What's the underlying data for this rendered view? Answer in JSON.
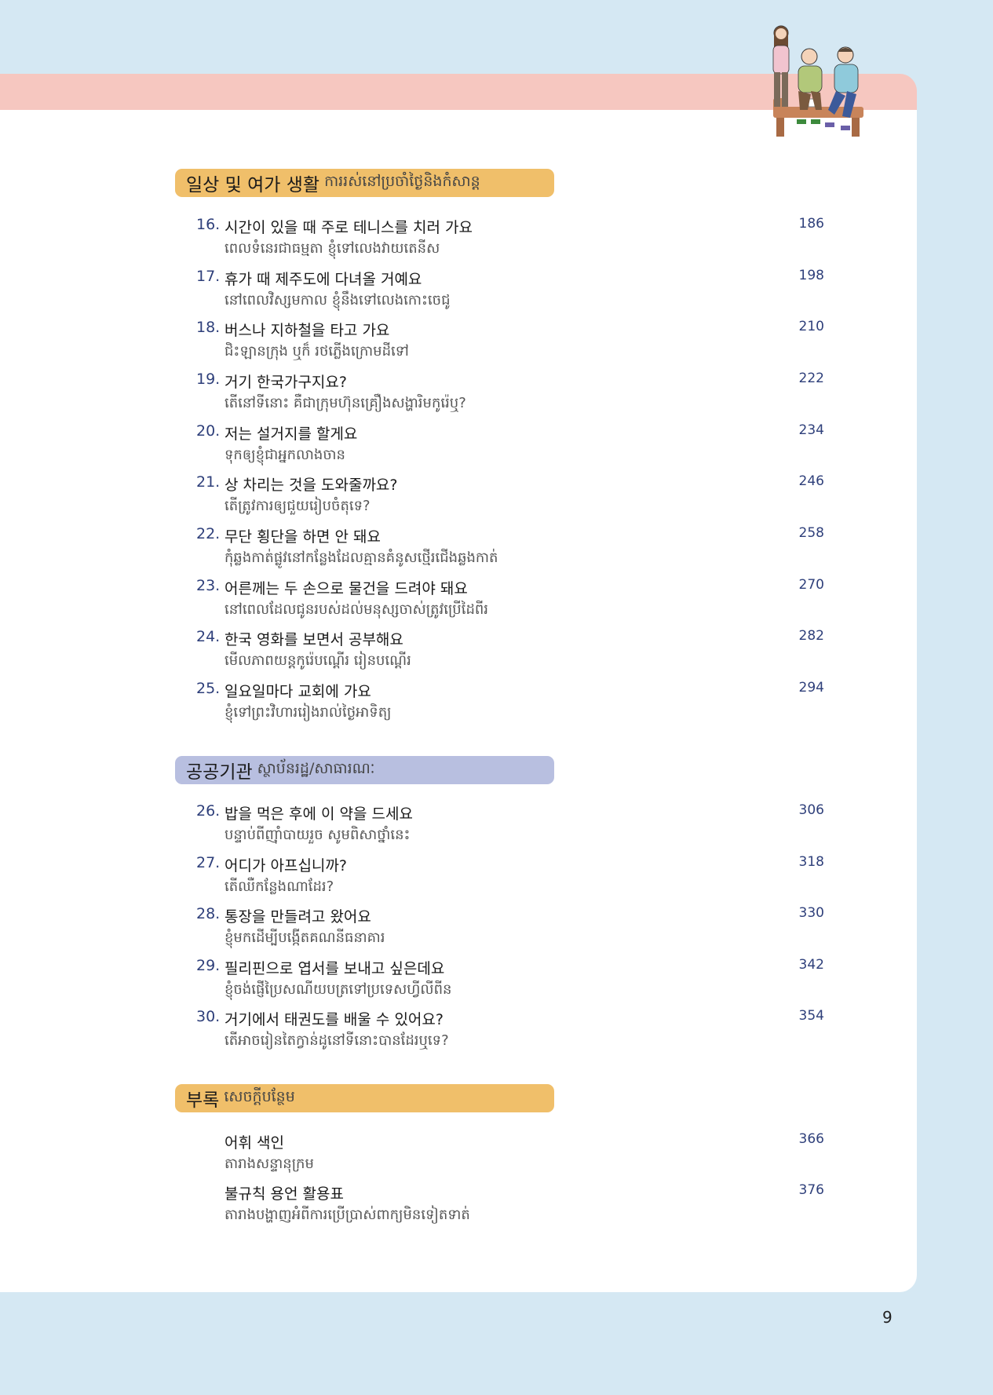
{
  "sections": [
    {
      "title_ko": "일상 및 여가 생활",
      "title_km": "ការរស់នៅប្រចាំថ្ងៃនិងកំសាន្ត",
      "color": "#f0bf6a",
      "entries": [
        {
          "num": "16.",
          "ko": "시간이 있을 때 주로 테니스를 치러 가요",
          "km": "ពេលទំនេរជាធម្មតា ខ្ញុំទៅលេងវាយតេនីស",
          "page": "186"
        },
        {
          "num": "17.",
          "ko": "휴가 때 제주도에 다녀올 거예요",
          "km": "នៅពេលវិស្សមកាល ខ្ញុំនឹងទៅលេងកោះចេជូ",
          "page": "198"
        },
        {
          "num": "18.",
          "ko": "버스나 지하철을 타고 가요",
          "km": "ជិះឡានក្រុង ឬក៏ រថភ្លើងក្រោមដីទៅ",
          "page": "210"
        },
        {
          "num": "19.",
          "ko": "거기 한국가구지요?",
          "km": "តើនៅទីនោះ គឺជាក្រុមហ៊ុនគ្រឿងសង្ហារិមកូរ៉េឬ?",
          "page": "222"
        },
        {
          "num": "20.",
          "ko": "저는 설거지를 할게요",
          "km": "ទុកឲ្យខ្ញុំជាអ្នកលាងចាន",
          "page": "234"
        },
        {
          "num": "21.",
          "ko": "상 차리는 것을 도와줄까요?",
          "km": "តើត្រូវការឲ្យជួយរៀបចំតុទេ?",
          "page": "246"
        },
        {
          "num": "22.",
          "ko": "무단 횡단을 하면 안 돼요",
          "km": "កុំឆ្លងកាត់ផ្លូវនៅកន្លែងដែលគ្មានគំនូសថ្មើរជើងឆ្លងកាត់",
          "page": "258"
        },
        {
          "num": "23.",
          "ko": "어른께는 두 손으로 물건을 드려야 돼요",
          "km": "នៅពេលដែលជូនរបស់ដល់មនុស្សចាស់ត្រូវប្រើដៃពីរ",
          "page": "270"
        },
        {
          "num": "24.",
          "ko": "한국 영화를 보면서 공부해요",
          "km": "មើលភាពយន្តកូរ៉េបណ្តើរ រៀនបណ្តើរ",
          "page": "282"
        },
        {
          "num": "25.",
          "ko": "일요일마다 교회에 가요",
          "km": "ខ្ញុំទៅព្រះវិហាររៀងរាល់ថ្ងៃអាទិត្យ",
          "page": "294"
        }
      ]
    },
    {
      "title_ko": "공공기관",
      "title_km": "ស្ថាប័នរដ្ឋ/សាធារណៈ",
      "color": "#b8bfe0",
      "entries": [
        {
          "num": "26.",
          "ko": "밥을 먹은 후에 이 약을 드세요",
          "km": "បន្ទាប់ពីញ៉ាំបាយរួច សូមពិសាថ្នាំនេះ",
          "page": "306"
        },
        {
          "num": "27.",
          "ko": "어디가 아프십니까?",
          "km": "តើឈឺកន្លែងណាដែរ?",
          "page": "318"
        },
        {
          "num": "28.",
          "ko": "통장을 만들려고 왔어요",
          "km": "ខ្ញុំមកដើម្បីបង្កើតគណនីធនាគារ",
          "page": "330"
        },
        {
          "num": "29.",
          "ko": "필리핀으로 엽서를 보내고 싶은데요",
          "km": "ខ្ញុំចង់ផ្ញើប្រៃសណីយបត្រទៅប្រទេសហ្វីលីពីន",
          "page": "342"
        },
        {
          "num": "30.",
          "ko": "거기에서 태권도를 배울 수 있어요?",
          "km": "តើអាចរៀនតៃក្វាន់ដូនៅទីនោះបានដែរឬទេ?",
          "page": "354"
        }
      ]
    },
    {
      "title_ko": "부록",
      "title_km": "សេចក្តីបន្ថែម",
      "color": "#f0bf6a",
      "entries": [
        {
          "num": "",
          "ko": "어휘 색인",
          "km": "តារាងសន្ទានុក្រម",
          "page": "366"
        },
        {
          "num": "",
          "ko": "불규칙 용언 활용표",
          "km": "តារាងបង្ហាញអំពីការប្រើប្រាស់ពាក្យមិនទៀតទាត់",
          "page": "376"
        }
      ]
    }
  ],
  "page_number": "9"
}
